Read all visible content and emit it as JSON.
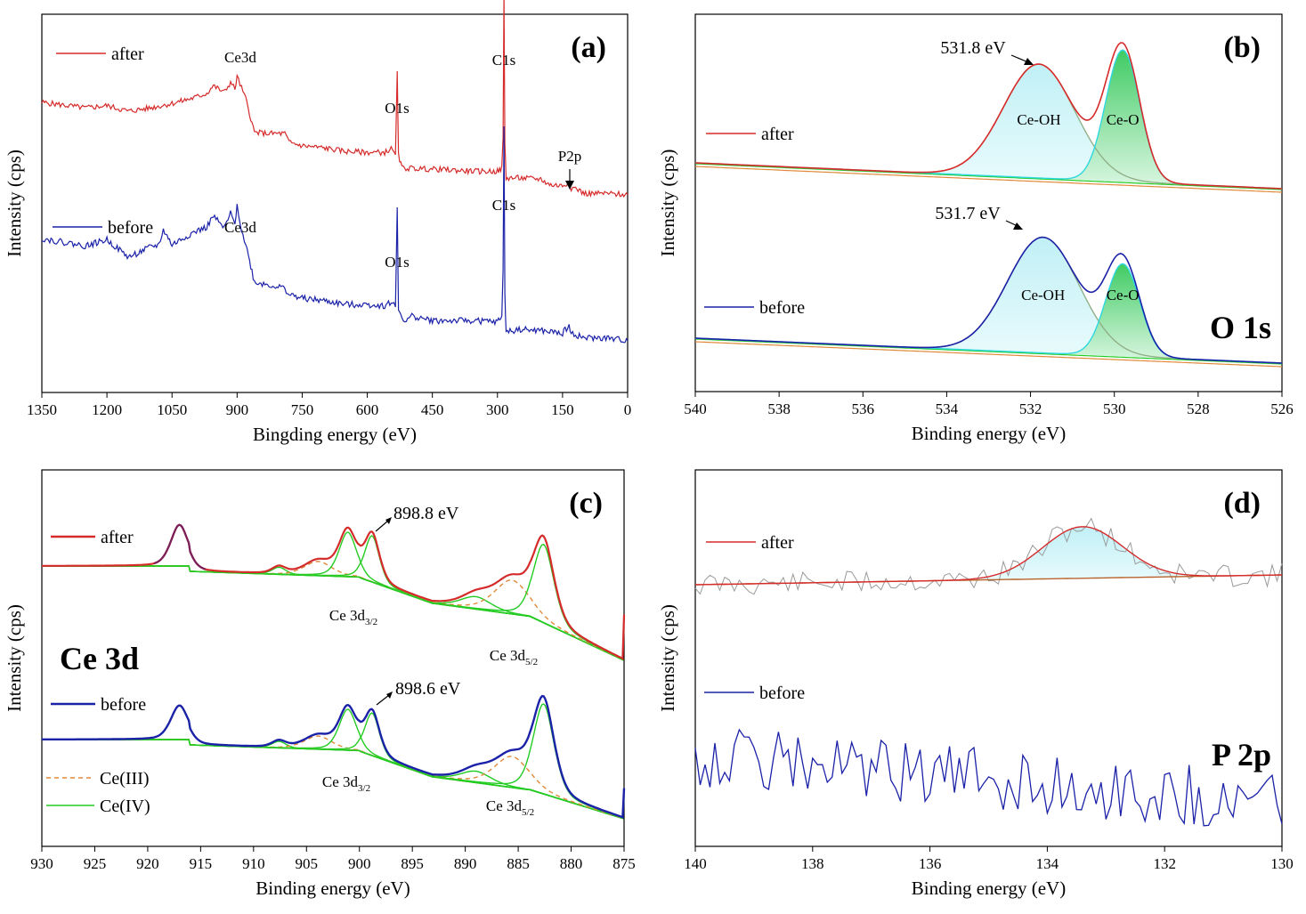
{
  "colors": {
    "after": "#d62b2b",
    "before": "#1b22a8",
    "ce3": "#e0893a",
    "ce4": "#22cc22",
    "fit_cyan": "#2ed8e0",
    "fill_cyan": "#aeeaf2",
    "fill_green": "#4fd36b",
    "raw_gray": "#9a9a9a"
  },
  "chart_data": [
    {
      "id": "a",
      "type": "line",
      "panel_label": "(a)",
      "xlabel": "Bingding energy (eV)",
      "ylabel": "Intensity (cps)",
      "xlim": [
        1350,
        0
      ],
      "xticks": [
        "1350",
        "1200",
        "1050",
        "900",
        "750",
        "600",
        "450",
        "300",
        "150",
        "0"
      ],
      "legend": [
        "after",
        "before"
      ],
      "peak_labels": [
        {
          "series": "after",
          "text": "Ce3d",
          "x": 900
        },
        {
          "series": "after",
          "text": "O1s",
          "x": 531
        },
        {
          "series": "after",
          "text": "C1s",
          "x": 285
        },
        {
          "series": "after",
          "text": "P2p",
          "x": 133
        },
        {
          "series": "before",
          "text": "Ce3d",
          "x": 900
        },
        {
          "series": "before",
          "text": "O1s",
          "x": 531
        },
        {
          "series": "before",
          "text": "C1s",
          "x": 285
        }
      ],
      "series": [
        {
          "name": "after",
          "x": [
            1350,
            1250,
            1200,
            1150,
            1100,
            1050,
            1000,
            970,
            955,
            930,
            915,
            905,
            900,
            890,
            880,
            860,
            830,
            790,
            780,
            750,
            700,
            650,
            600,
            560,
            545,
            535,
            531,
            528,
            520,
            450,
            400,
            350,
            300,
            295,
            290,
            287,
            285,
            283,
            280,
            250,
            200,
            180,
            150,
            135,
            130,
            120,
            100,
            50,
            0
          ],
          "y": [
            0.72,
            0.67,
            0.69,
            0.64,
            0.67,
            0.71,
            0.76,
            0.8,
            0.87,
            0.81,
            0.9,
            0.84,
            0.95,
            0.85,
            0.75,
            0.45,
            0.44,
            0.44,
            0.36,
            0.33,
            0.31,
            0.28,
            0.27,
            0.27,
            0.3,
            0.25,
            1.0,
            0.24,
            0.13,
            0.12,
            0.11,
            0.1,
            0.1,
            0.11,
            0.13,
            0.4,
            1.7,
            0.35,
            0.04,
            0.04,
            0.03,
            -0.02,
            -0.03,
            0.0,
            -0.05,
            -0.05,
            -0.1,
            -0.1,
            -0.11
          ]
        },
        {
          "name": "before",
          "x": [
            1350,
            1250,
            1200,
            1150,
            1100,
            1080,
            1070,
            1050,
            1000,
            970,
            955,
            930,
            915,
            905,
            900,
            890,
            880,
            860,
            830,
            790,
            780,
            750,
            700,
            650,
            600,
            560,
            545,
            535,
            531,
            528,
            520,
            510,
            500,
            450,
            400,
            350,
            300,
            295,
            290,
            287,
            285,
            283,
            280,
            250,
            200,
            180,
            150,
            135,
            130,
            120,
            100,
            50,
            0
          ],
          "y": [
            0.85,
            0.79,
            0.84,
            0.7,
            0.78,
            0.8,
            0.92,
            0.8,
            0.9,
            0.94,
            1.03,
            0.93,
            1.05,
            0.96,
            1.13,
            0.92,
            0.8,
            0.5,
            0.48,
            0.45,
            0.4,
            0.37,
            0.35,
            0.32,
            0.32,
            0.31,
            0.34,
            0.3,
            1.1,
            0.28,
            0.22,
            0.18,
            0.23,
            0.19,
            0.19,
            0.19,
            0.18,
            0.2,
            0.23,
            0.6,
            1.75,
            0.4,
            0.1,
            0.12,
            0.11,
            0.1,
            0.09,
            0.15,
            0.08,
            0.08,
            0.05,
            0.05,
            0.03
          ]
        }
      ]
    },
    {
      "id": "b",
      "type": "line",
      "panel_label": "(b)",
      "xlabel": "Binding energy (eV)",
      "ylabel": "Intensity (cps)",
      "xlim": [
        540,
        526
      ],
      "xticks": [
        "540",
        "538",
        "536",
        "534",
        "532",
        "530",
        "528",
        "526"
      ],
      "legend": [
        "after",
        "before"
      ],
      "corner_label": "O 1s",
      "components": [
        "Ce-OH",
        "Ce-O"
      ],
      "annotations": [
        {
          "series": "after",
          "text": "531.8 eV",
          "x": 531.8
        },
        {
          "series": "before",
          "text": "531.7 eV",
          "x": 531.7
        }
      ],
      "series": [
        {
          "name": "after",
          "ce_oh_center": 531.8,
          "ce_o_center": 529.8
        },
        {
          "name": "before",
          "ce_oh_center": 531.7,
          "ce_o_center": 529.8
        }
      ]
    },
    {
      "id": "c",
      "type": "line",
      "panel_label": "(c)",
      "xlabel": "Binding energy (eV)",
      "ylabel": "Intensity (cps)",
      "xlim": [
        930,
        875
      ],
      "xticks": [
        "930",
        "925",
        "920",
        "915",
        "910",
        "905",
        "900",
        "895",
        "890",
        "885",
        "880",
        "875"
      ],
      "legend": [
        "after",
        "before",
        "Ce(III)",
        "Ce(IV)"
      ],
      "corner_label": "Ce 3d",
      "annotations": [
        {
          "series": "after",
          "text": "898.8 eV",
          "x": 898.8
        },
        {
          "series": "before",
          "text": "898.6 eV",
          "x": 898.6
        }
      ],
      "region_labels": [
        {
          "series": "after",
          "main": "Ce 3d",
          "sub": "3/2"
        },
        {
          "series": "after",
          "main": "Ce 3d",
          "sub": "5/2"
        },
        {
          "series": "before",
          "main": "Ce 3d",
          "sub": "3/2"
        },
        {
          "series": "before",
          "main": "Ce 3d",
          "sub": "5/2"
        }
      ],
      "series": [
        {
          "name": "after",
          "peaks": [
            917.0,
            907.6,
            903.9,
            901.1,
            898.8,
            889.0,
            885.6,
            882.6
          ]
        },
        {
          "name": "before",
          "peaks": [
            917.0,
            907.6,
            903.9,
            901.1,
            898.6,
            889.0,
            885.6,
            882.6
          ]
        }
      ]
    },
    {
      "id": "d",
      "type": "line",
      "panel_label": "(d)",
      "xlabel": "Binding energy (eV)",
      "ylabel": "Intensity (cps)",
      "xlim": [
        140,
        130
      ],
      "xticks": [
        "140",
        "138",
        "136",
        "134",
        "132",
        "130"
      ],
      "legend": [
        "after",
        "before"
      ],
      "corner_label": "P 2p",
      "series": [
        {
          "name": "after",
          "fit_peak_center": 133.4
        },
        {
          "name": "before"
        }
      ]
    }
  ]
}
